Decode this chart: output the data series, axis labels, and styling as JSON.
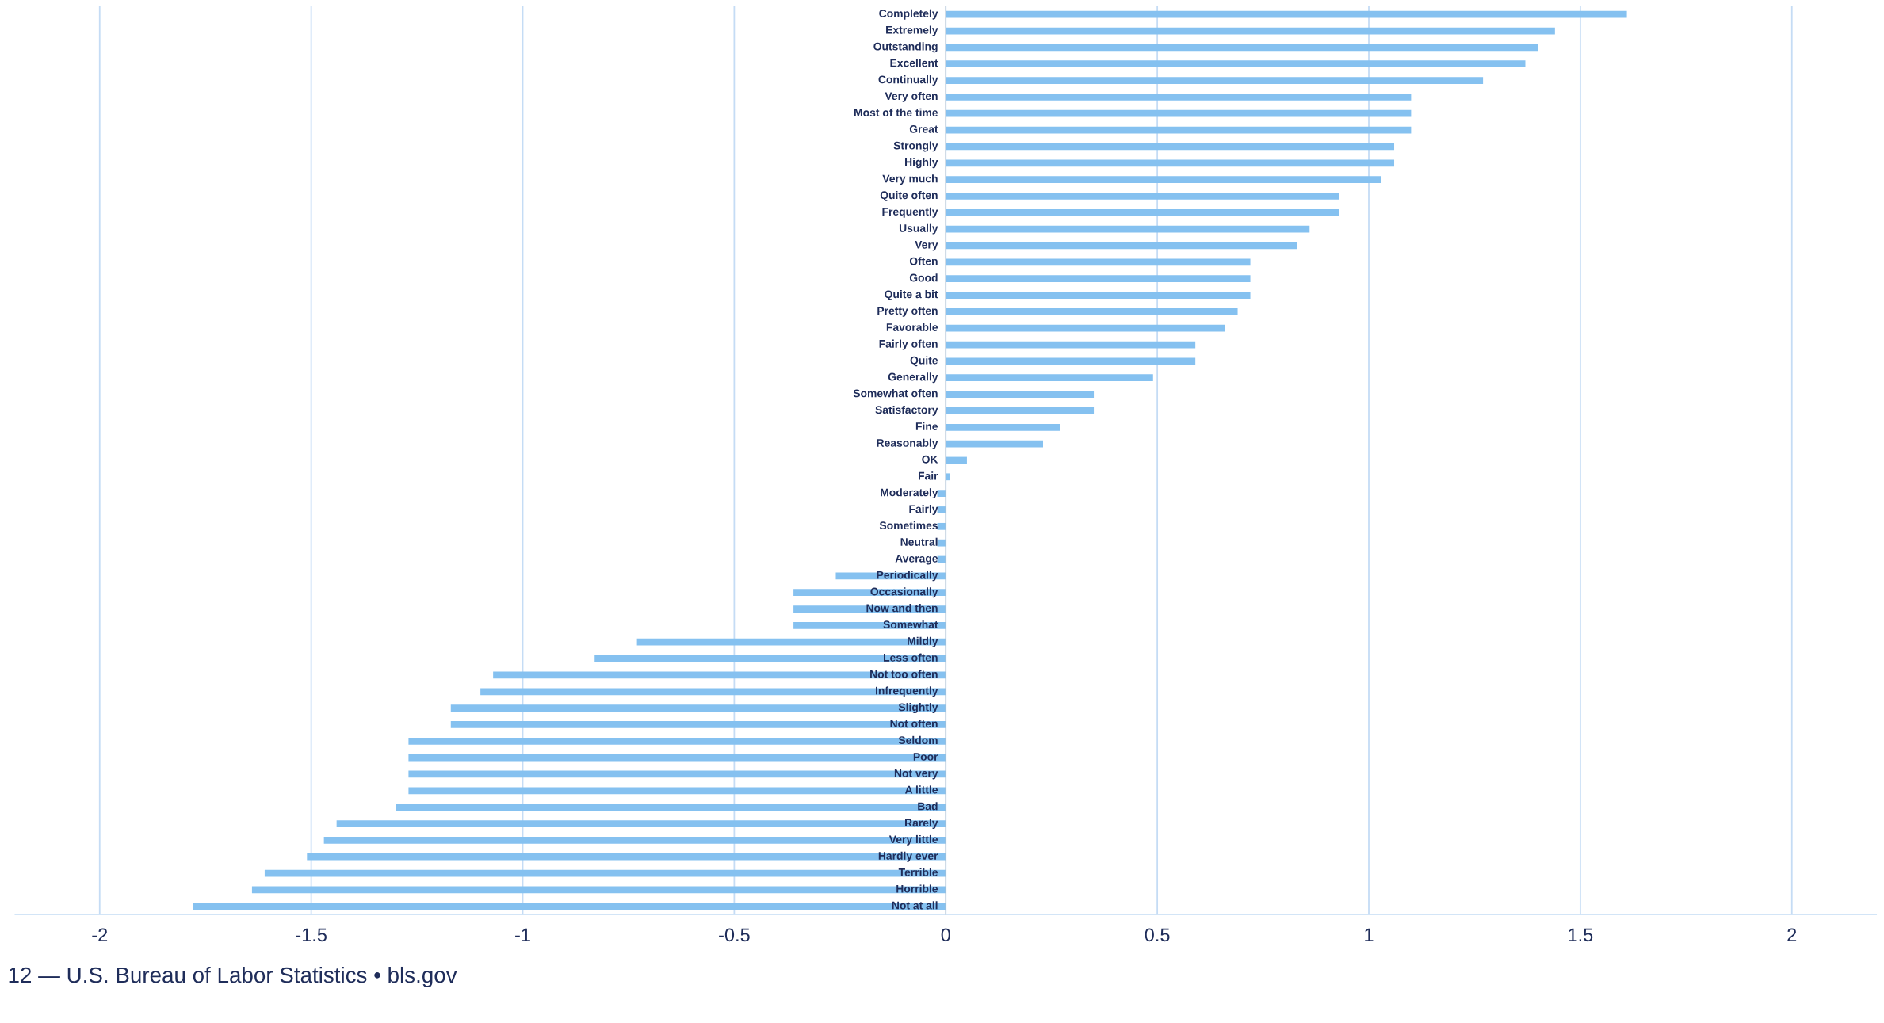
{
  "chart_data": {
    "type": "bar",
    "orientation": "horizontal",
    "categories": [
      "Completely",
      "Extremely",
      "Outstanding",
      "Excellent",
      "Continually",
      "Very often",
      "Most of the time",
      "Great",
      "Strongly",
      "Highly",
      "Very much",
      "Quite often",
      "Frequently",
      "Usually",
      "Very",
      "Often",
      "Good",
      "Quite a bit",
      "Pretty often",
      "Favorable",
      "Fairly often",
      "Quite",
      "Generally",
      "Somewhat often",
      "Satisfactory",
      "Fine",
      "Reasonably",
      "OK",
      "Fair",
      "Moderately",
      "Fairly",
      "Sometimes",
      "Neutral",
      "Average",
      "Periodically",
      "Occasionally",
      "Now and then",
      "Somewhat",
      "Mildly",
      "Less often",
      "Not too often",
      "Infrequently",
      "Slightly",
      "Not often",
      "Seldom",
      "Poor",
      "Not very",
      "A little",
      "Bad",
      "Rarely",
      "Very little",
      "Hardly ever",
      "Terrible",
      "Horrible",
      "Not at all"
    ],
    "values": [
      1.61,
      1.44,
      1.4,
      1.37,
      1.27,
      1.1,
      1.1,
      1.1,
      1.06,
      1.06,
      1.03,
      0.93,
      0.93,
      0.86,
      0.83,
      0.72,
      0.72,
      0.72,
      0.69,
      0.66,
      0.59,
      0.59,
      0.49,
      0.35,
      0.35,
      0.27,
      0.23,
      0.05,
      0.01,
      -0.02,
      -0.02,
      -0.02,
      -0.02,
      -0.02,
      -0.26,
      -0.36,
      -0.36,
      -0.36,
      -0.73,
      -0.83,
      -1.07,
      -1.1,
      -1.17,
      -1.17,
      -1.27,
      -1.27,
      -1.27,
      -1.27,
      -1.3,
      -1.44,
      -1.47,
      -1.51,
      -1.61,
      -1.64,
      -1.78
    ],
    "color": "#85c1f0",
    "xlim": [
      -2.2,
      2.2
    ],
    "xticks": [
      -2,
      -1.5,
      -1,
      -0.5,
      0,
      0.5,
      1,
      1.5,
      2
    ],
    "grid": "x",
    "annotations": [
      "12 — U.S. Bureau of Labor Statistics • bls.gov"
    ]
  }
}
